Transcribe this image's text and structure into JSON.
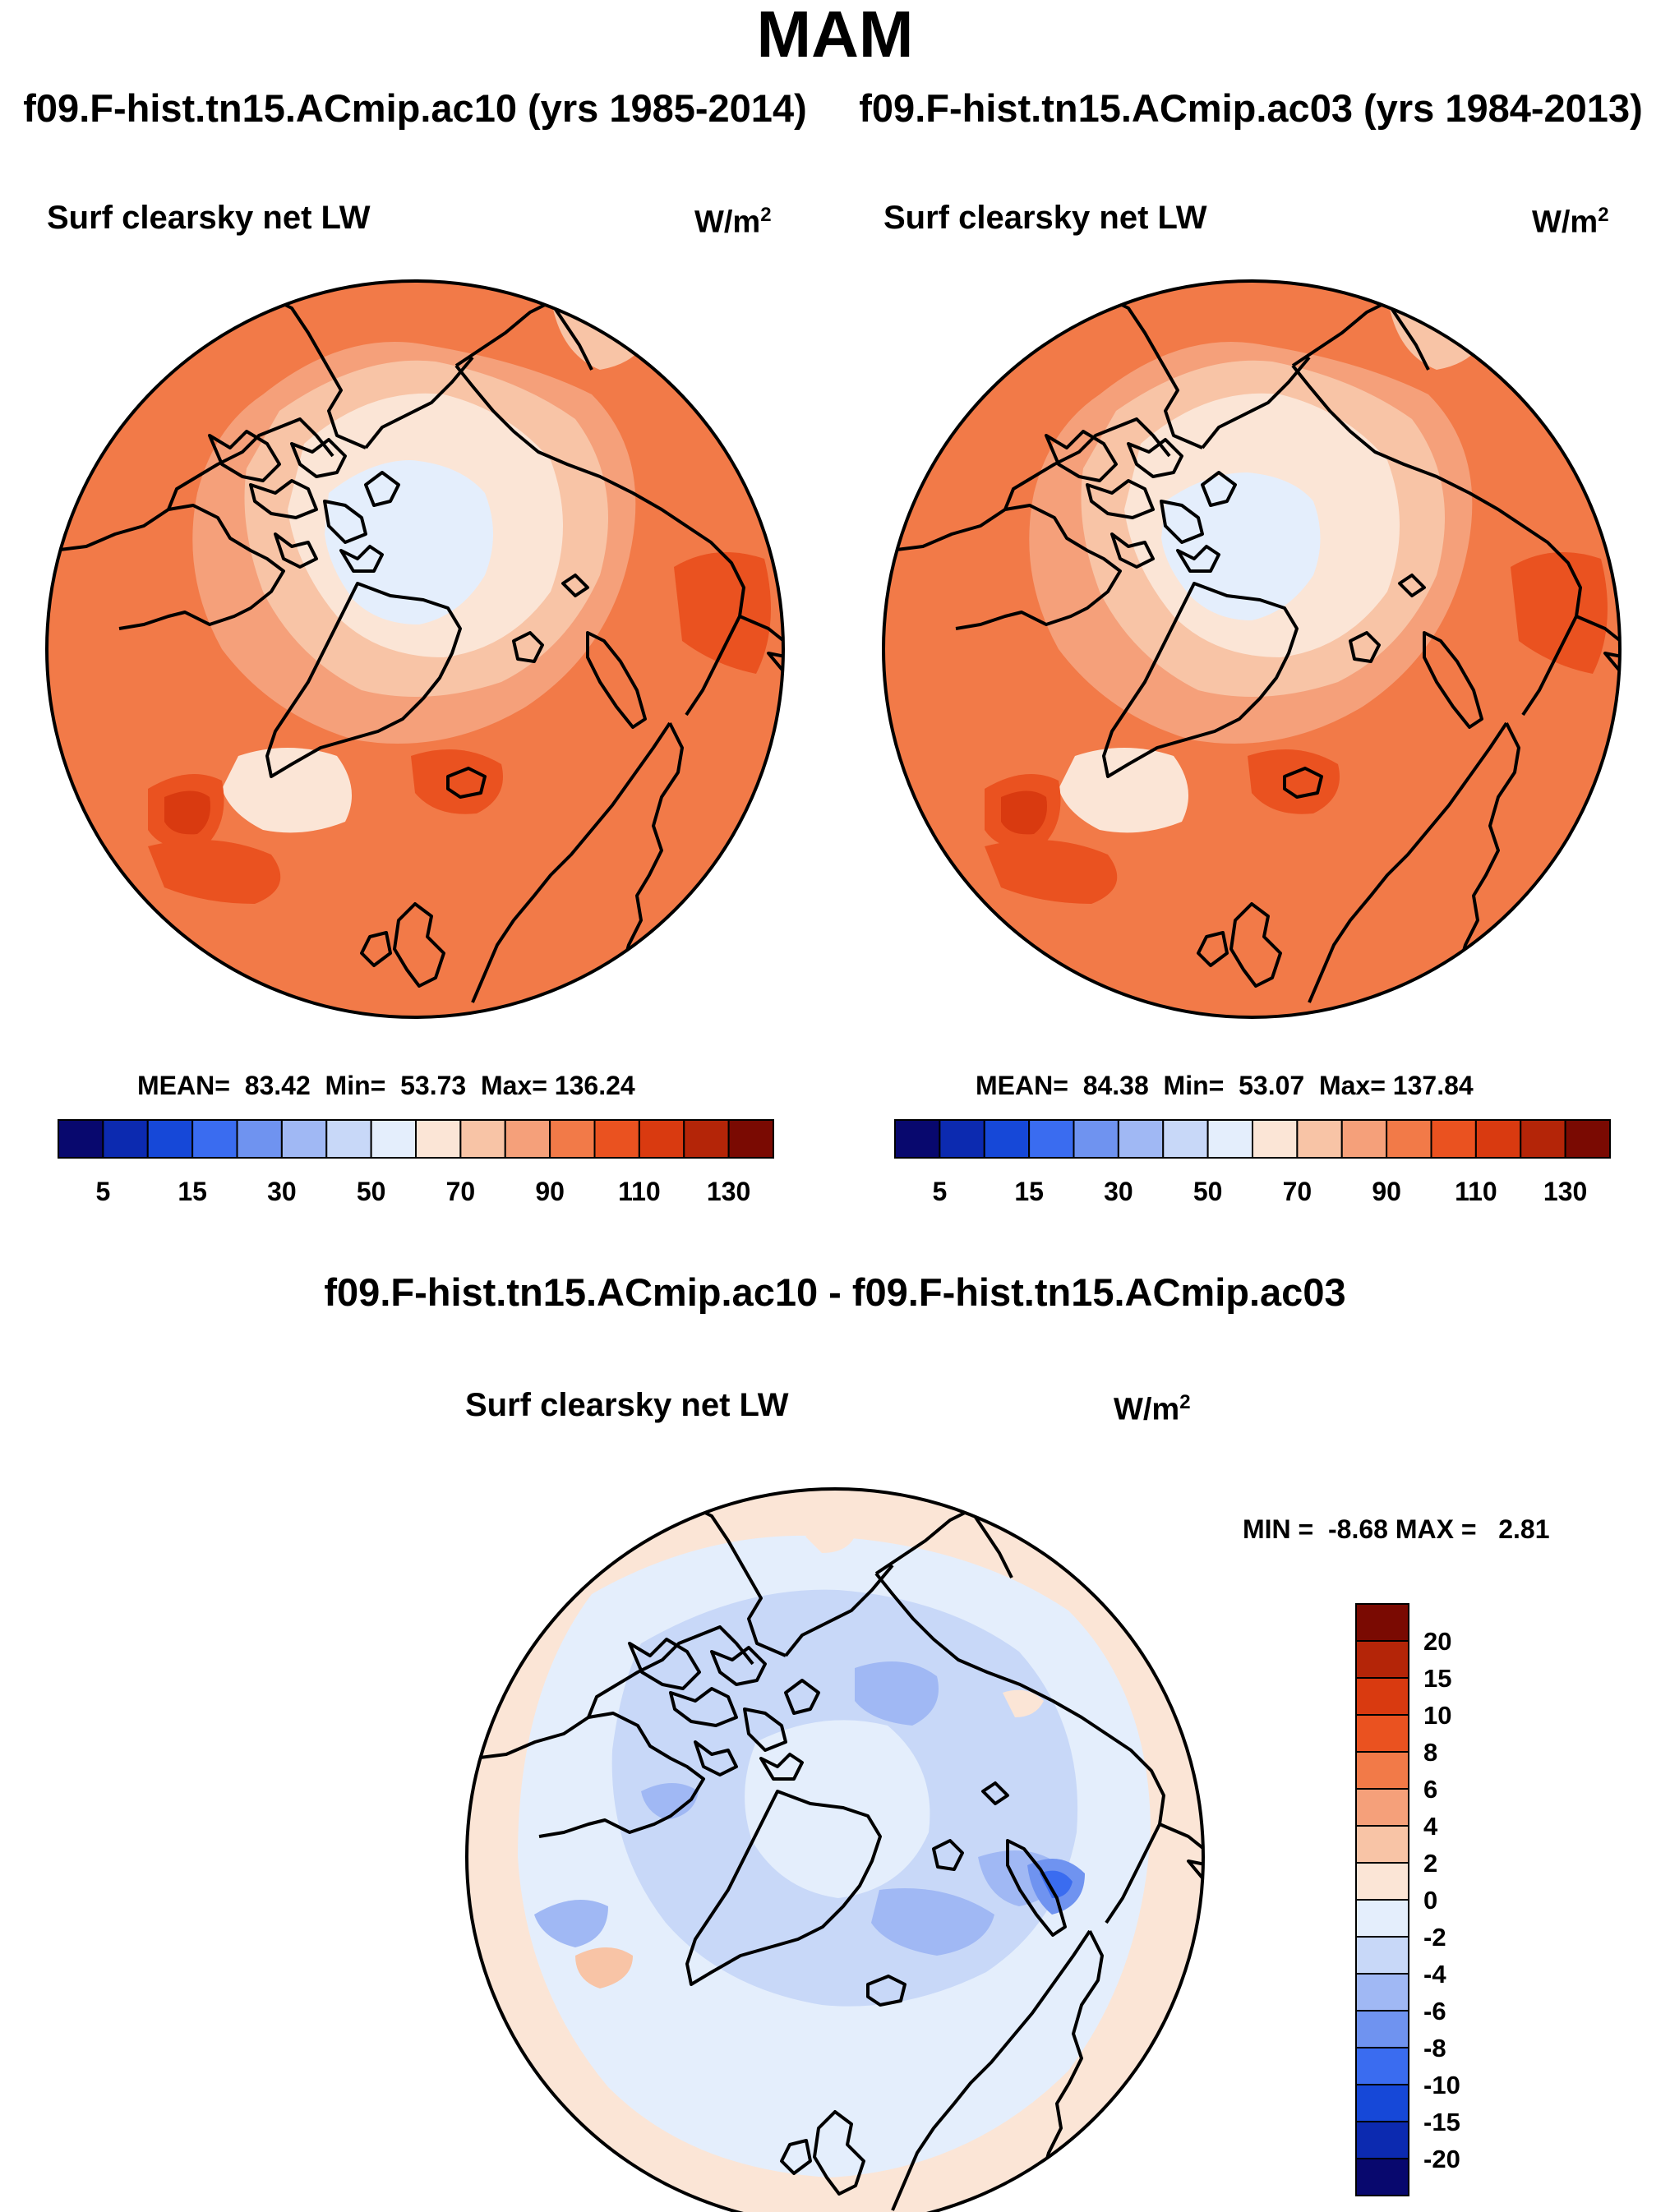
{
  "title": "MAM",
  "case_left": "f09.F-hist.tn15.ACmip.ac10 (yrs 1985-2014)",
  "case_right": "f09.F-hist.tn15.ACmip.ac03 (yrs 1984-2013)",
  "diff_title": "f09.F-hist.tn15.ACmip.ac10 - f09.F-hist.tn15.ACmip.ac03",
  "variable": "Surf clearsky net LW",
  "units_base": "W/m",
  "units_exp": "2",
  "panels": {
    "left": {
      "mean": "83.42",
      "min": "53.73",
      "max": "136.24"
    },
    "right": {
      "mean": "84.38",
      "min": "53.07",
      "max": "137.84"
    },
    "diff": {
      "min": "-8.68",
      "max": "2.81"
    }
  },
  "labels": {
    "mean": "MEAN=",
    "min": "Min=",
    "max": "Max=",
    "diff_min": "MIN =",
    "diff_max": "MAX ="
  },
  "colorbar_main": {
    "colors": [
      "#08086e",
      "#0c2ab0",
      "#1648d8",
      "#3a6cf0",
      "#6f93f0",
      "#a0b8f4",
      "#c8d8f8",
      "#e4eefc",
      "#fbe5d6",
      "#f8c4a6",
      "#f5a07a",
      "#f27a48",
      "#ea5220",
      "#d93a10",
      "#b42508",
      "#7a0a02"
    ],
    "tick_labels": [
      "5",
      "15",
      "30",
      "50",
      "70",
      "90",
      "110",
      "130"
    ]
  },
  "colorbar_diff": {
    "colors": [
      "#08086e",
      "#0c2ab0",
      "#1648d8",
      "#3a6cf0",
      "#6f93f0",
      "#a0b8f4",
      "#c8d8f8",
      "#e4eefc",
      "#fbe5d6",
      "#f8c4a6",
      "#f5a07a",
      "#f27a48",
      "#ea5220",
      "#d93a10",
      "#b42508",
      "#7a0a02"
    ],
    "tick_labels": [
      "20",
      "15",
      "10",
      "8",
      "6",
      "4",
      "2",
      "0",
      "-2",
      "-4",
      "-6",
      "-8",
      "-10",
      "-15",
      "-20"
    ]
  }
}
